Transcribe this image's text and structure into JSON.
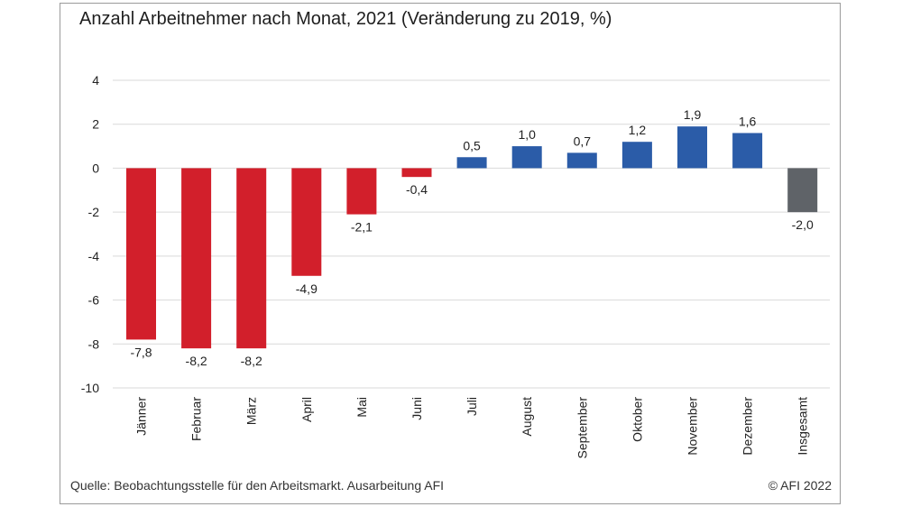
{
  "title": "Anzahl Arbeitnehmer nach Monat, 2021 (Veränderung zu 2019, %)",
  "source": "Quelle: Beobachtungsstelle für den Arbeitsmarkt. Ausarbeitung AFI",
  "copyright": "© AFI 2022",
  "colors": {
    "negative": "#d21f2b",
    "positive": "#2b5ca8",
    "total": "#5f6368",
    "grid": "#d9d9d9",
    "text": "#222222"
  },
  "chart_data": {
    "type": "bar",
    "categories": [
      "Jänner",
      "Februar",
      "März",
      "April",
      "Mai",
      "Juni",
      "Juli",
      "August",
      "September",
      "Oktober",
      "November",
      "Dezember",
      "Insgesamt"
    ],
    "values": [
      -7.8,
      -8.2,
      -8.2,
      -4.9,
      -2.1,
      -0.4,
      0.5,
      1.0,
      0.7,
      1.2,
      1.9,
      1.6,
      -2.0
    ],
    "value_labels": [
      "-7,8",
      "-8,2",
      "-8,2",
      "-4,9",
      "-2,1",
      "-0,4",
      "0,5",
      "1,0",
      "0,7",
      "1,2",
      "1,9",
      "1,6",
      "-2,0"
    ],
    "yticks": [
      4,
      2,
      0,
      -2,
      -4,
      -6,
      -8,
      -10
    ],
    "ylim": [
      -10,
      4
    ],
    "grid": true,
    "legend": false
  }
}
